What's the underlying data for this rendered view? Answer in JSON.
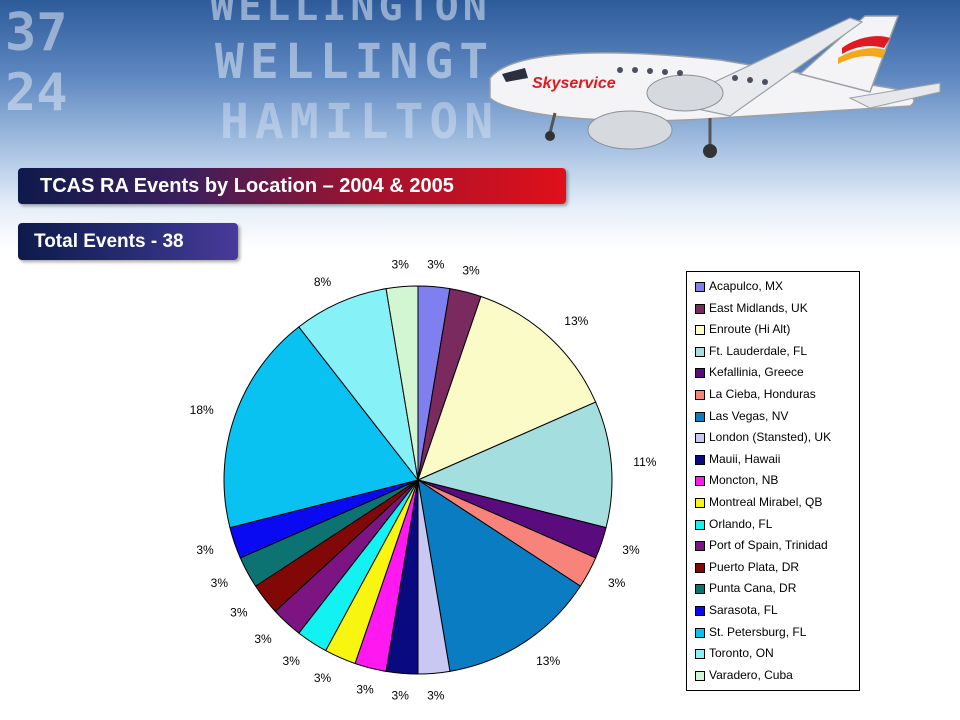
{
  "header": {
    "title": "TCAS RA Events by Location – 2004 & 2005",
    "subtitle": "Total Events - 38",
    "board_words": [
      "WELLINGTON",
      "WELLINGT",
      "HAMILTON"
    ],
    "board_numbers": [
      "37",
      "24"
    ],
    "airline_logo": "Skyservice"
  },
  "chart_data": {
    "type": "pie",
    "title": "",
    "start_angle_deg": 0,
    "direction": "clockwise",
    "legend_placement": "right",
    "slices": [
      {
        "label": "Acapulco, MX",
        "value": 1,
        "pct_label": "3%",
        "color": "#7f7ff0"
      },
      {
        "label": "East Midlands, UK",
        "value": 1,
        "pct_label": "3%",
        "color": "#7a2a5e"
      },
      {
        "label": "Enroute (Hi Alt)",
        "value": 5,
        "pct_label": "13%",
        "color": "#fbfbc8"
      },
      {
        "label": "Ft. Lauderdale, FL",
        "value": 4,
        "pct_label": "11%",
        "color": "#a4dede"
      },
      {
        "label": "Kefallinia, Greece",
        "value": 1,
        "pct_label": "3%",
        "color": "#5a0c7e"
      },
      {
        "label": "La Cieba, Honduras",
        "value": 1,
        "pct_label": "3%",
        "color": "#f7837a"
      },
      {
        "label": "Las Vegas, NV",
        "value": 5,
        "pct_label": "13%",
        "color": "#0a7cc2"
      },
      {
        "label": "London (Stansted), UK",
        "value": 1,
        "pct_label": "3%",
        "color": "#c8c8f2"
      },
      {
        "label": "Mauii, Hawaii",
        "value": 1,
        "pct_label": "3%",
        "color": "#0a0a80"
      },
      {
        "label": "Moncton, NB",
        "value": 1,
        "pct_label": "3%",
        "color": "#ff18f0"
      },
      {
        "label": "Montreal Mirabel, QB",
        "value": 1,
        "pct_label": "3%",
        "color": "#f8f510"
      },
      {
        "label": "Orlando, FL",
        "value": 1,
        "pct_label": "3%",
        "color": "#12f2f2"
      },
      {
        "label": "Port of Spain, Trinidad",
        "value": 1,
        "pct_label": "3%",
        "color": "#7c1482"
      },
      {
        "label": "Puerto Plata, DR",
        "value": 1,
        "pct_label": "3%",
        "color": "#820808"
      },
      {
        "label": "Punta Cana, DR",
        "value": 1,
        "pct_label": "3%",
        "color": "#0c7272"
      },
      {
        "label": "Sarasota, FL",
        "value": 1,
        "pct_label": "3%",
        "color": "#0a0af2"
      },
      {
        "label": "St. Petersburg, FL",
        "value": 7,
        "pct_label": "18%",
        "color": "#0ac2f2"
      },
      {
        "label": "Toronto, ON",
        "value": 3,
        "pct_label": "8%",
        "color": "#86f2f8"
      },
      {
        "label": "Varadero, Cuba",
        "value": 1,
        "pct_label": "3%",
        "color": "#d2f5d2"
      }
    ]
  }
}
